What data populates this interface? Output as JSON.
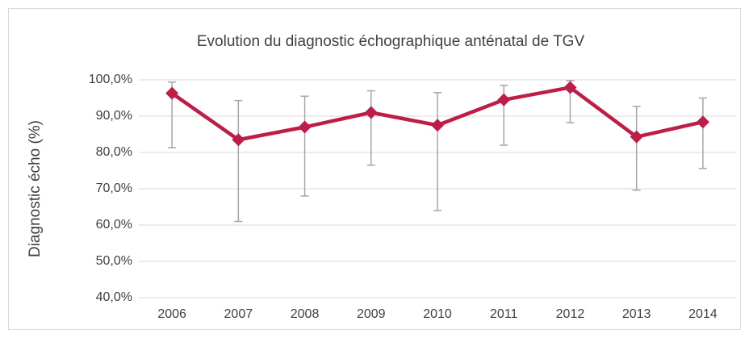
{
  "chart_data": {
    "type": "line",
    "title": "Evolution du diagnostic échographique anténatal de TGV",
    "y_label": "Diagnostic écho (%)",
    "categories": [
      "2006",
      "2007",
      "2008",
      "2009",
      "2010",
      "2011",
      "2012",
      "2013",
      "2014"
    ],
    "series": [
      {
        "color": "#be1e45",
        "values": [
          96.3,
          83.5,
          87,
          91,
          87.5,
          94.5,
          97.9,
          84.3,
          88.4
        ],
        "lower": [
          81.3,
          61,
          68,
          76.5,
          64,
          82,
          88.2,
          69.6,
          75.6
        ],
        "upper": [
          99.4,
          94.3,
          95.5,
          97,
          96.5,
          98.5,
          99.8,
          92.7,
          95
        ]
      }
    ],
    "error_color": "#a6a6a6",
    "ylim": [
      40,
      100
    ],
    "yticks": [
      {
        "value": 40,
        "label": "40,0%"
      },
      {
        "value": 50,
        "label": "50,0%"
      },
      {
        "value": 60,
        "label": "60,0%"
      },
      {
        "value": 70,
        "label": "70,0%"
      },
      {
        "value": 80,
        "label": "80,0%"
      },
      {
        "value": 90,
        "label": "90,0%"
      },
      {
        "value": 100,
        "label": "100,0%"
      }
    ],
    "grid": true
  }
}
